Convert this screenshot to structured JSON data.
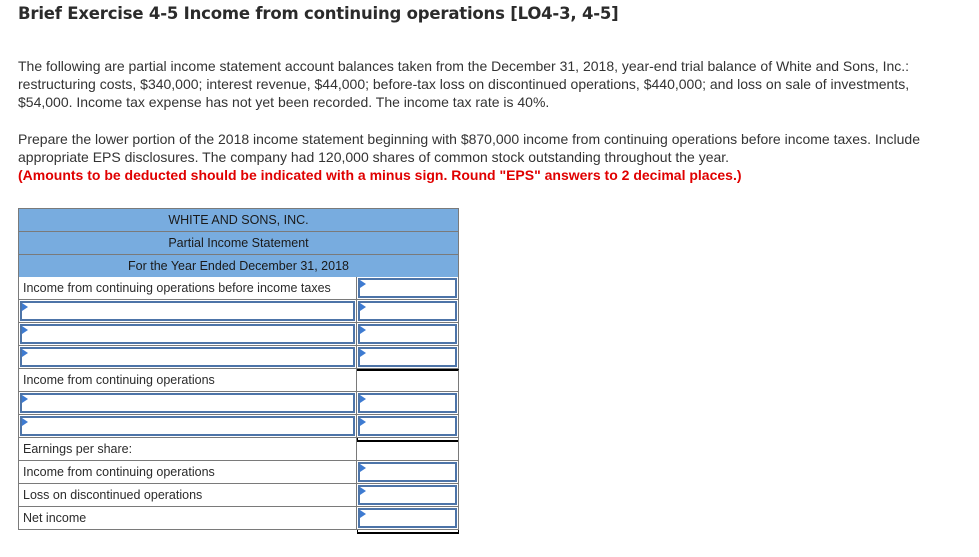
{
  "title": "Brief Exercise 4-5 Income from continuing operations [LO4-3, 4-5]",
  "paragraphs": {
    "p1": "The following are partial income statement account balances taken from the December 31, 2018, year-end trial balance of White and Sons, Inc.: restructuring costs, $340,000; interest revenue, $44,000; before-tax loss on discontinued operations, $440,000; and loss on sale of investments, $54,000. Income tax expense has not yet been recorded. The income tax rate is 40%.",
    "p2": "Prepare the lower portion of the 2018 income statement beginning with $870,000 income from continuing operations before income taxes. Include appropriate EPS disclosures. The company had 120,000 shares of common stock outstanding throughout the year.",
    "instruction": "(Amounts to be deducted should be indicated with a minus sign. Round \"EPS\" answers to 2 decimal places.)"
  },
  "statement": {
    "headers": [
      "WHITE AND SONS, INC.",
      "Partial Income Statement",
      "For the Year Ended December 31, 2018"
    ],
    "rows": [
      {
        "label": "Income from continuing operations before income taxes",
        "label_editable": false,
        "value": "",
        "value_editable": true
      },
      {
        "label": "",
        "label_editable": true,
        "value": "",
        "value_editable": true
      },
      {
        "label": "",
        "label_editable": true,
        "value": "",
        "value_editable": true
      },
      {
        "label": "",
        "label_editable": true,
        "value": "",
        "value_editable": true
      },
      {
        "label": "Income from continuing operations",
        "label_editable": false,
        "value": "",
        "value_editable": false
      },
      {
        "label": "",
        "label_editable": true,
        "value": "",
        "value_editable": true
      },
      {
        "label": "",
        "label_editable": true,
        "value": "",
        "value_editable": true
      },
      {
        "label": "Earnings per share:",
        "label_editable": false,
        "value": "",
        "value_editable": false
      },
      {
        "label": "Income from continuing operations",
        "label_editable": false,
        "value": "",
        "value_editable": true
      },
      {
        "label": "Loss on discontinued operations",
        "label_editable": false,
        "value": "",
        "value_editable": true
      },
      {
        "label": "Net income",
        "label_editable": false,
        "value": "",
        "value_editable": true
      }
    ]
  },
  "colors": {
    "header_bg": "#78acdf",
    "input_border": "#4d74a8",
    "warning": "#e00000"
  }
}
